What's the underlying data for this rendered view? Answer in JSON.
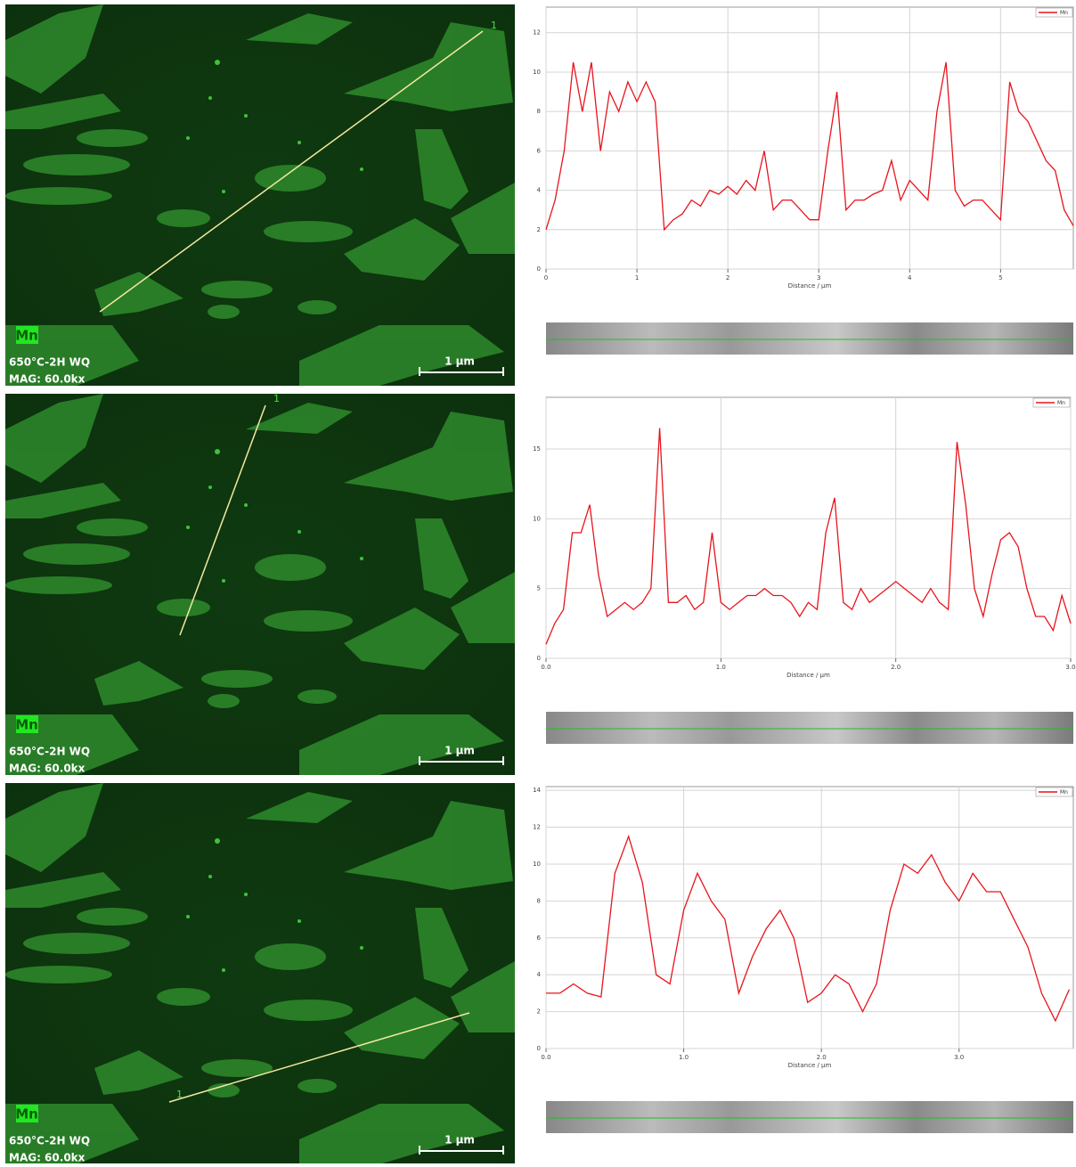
{
  "micrographs": [
    {
      "element": "Mn",
      "sample": "650°C-2H WQ",
      "mag": "MAG: 60.0kx",
      "scale": "1 µm",
      "marker": "1"
    },
    {
      "element": "Mn",
      "sample": "650°C-2H WQ",
      "mag": "MAG: 60.0kx",
      "scale": "1 µm",
      "marker": "1"
    },
    {
      "element": "Mn",
      "sample": "650°C-2H WQ",
      "mag": "MAG: 60.0kx",
      "scale": "1 µm",
      "marker": "1"
    }
  ],
  "chart_data": [
    {
      "type": "line",
      "x_label": "Distance / µm",
      "grid": true,
      "legend": "upper right",
      "xlim": [
        0,
        5.8
      ],
      "xticks": [
        0,
        1,
        2,
        3,
        4,
        5
      ],
      "ylim": [
        0,
        13.3
      ],
      "yticks": [
        0,
        2,
        4,
        6,
        8,
        10,
        12
      ],
      "x": [
        0,
        0.1,
        0.2,
        0.3,
        0.4,
        0.5,
        0.6,
        0.7,
        0.8,
        0.9,
        1.0,
        1.1,
        1.2,
        1.3,
        1.4,
        1.5,
        1.6,
        1.7,
        1.8,
        1.9,
        2.0,
        2.1,
        2.2,
        2.3,
        2.4,
        2.5,
        2.6,
        2.7,
        2.8,
        2.9,
        3.0,
        3.1,
        3.2,
        3.3,
        3.4,
        3.5,
        3.6,
        3.7,
        3.8,
        3.9,
        4.0,
        4.1,
        4.2,
        4.3,
        4.4,
        4.5,
        4.6,
        4.7,
        4.8,
        4.9,
        5.0,
        5.1,
        5.2,
        5.3,
        5.4,
        5.5,
        5.6,
        5.7,
        5.8
      ],
      "series": [
        {
          "name": "Mn",
          "color": "#e8141c",
          "values": [
            2,
            3.5,
            6,
            10.5,
            8,
            10.5,
            6,
            9,
            8,
            9.5,
            8.5,
            9.5,
            8.5,
            2,
            2.5,
            2.8,
            3.5,
            3.2,
            4,
            3.8,
            4.2,
            3.8,
            4.5,
            4,
            6,
            3,
            3.5,
            3.5,
            3,
            2.5,
            2.5,
            6,
            9,
            3,
            3.5,
            3.5,
            3.8,
            4,
            5.5,
            3.5,
            4.5,
            4,
            3.5,
            8,
            10.5,
            4,
            3.2,
            3.5,
            3.5,
            3,
            2.5,
            9.5,
            8,
            7.5,
            6.5,
            5.5,
            5,
            3,
            2.2
          ]
        }
      ]
    },
    {
      "type": "line",
      "x_label": "Distance / µm",
      "grid": true,
      "legend": "upper right",
      "xlim": [
        0,
        3.0
      ],
      "xticks": [
        {
          "value": 0,
          "label": "0.0"
        },
        {
          "value": 1,
          "label": "1.0"
        },
        {
          "value": 2,
          "label": "2.0"
        },
        {
          "value": 3,
          "label": "3.0"
        }
      ],
      "ylim": [
        0,
        18.7
      ],
      "yticks": [
        0,
        5,
        10,
        15
      ],
      "x": [
        0,
        0.05,
        0.1,
        0.15,
        0.2,
        0.25,
        0.3,
        0.35,
        0.4,
        0.45,
        0.5,
        0.55,
        0.6,
        0.65,
        0.7,
        0.75,
        0.8,
        0.85,
        0.9,
        0.95,
        1.0,
        1.05,
        1.1,
        1.15,
        1.2,
        1.25,
        1.3,
        1.35,
        1.4,
        1.45,
        1.5,
        1.55,
        1.6,
        1.65,
        1.7,
        1.75,
        1.8,
        1.85,
        1.9,
        1.95,
        2.0,
        2.05,
        2.1,
        2.15,
        2.2,
        2.25,
        2.3,
        2.35,
        2.4,
        2.45,
        2.5,
        2.55,
        2.6,
        2.65,
        2.7,
        2.75,
        2.8,
        2.85,
        2.9,
        2.95,
        3.0
      ],
      "series": [
        {
          "name": "Mn",
          "color": "#e8141c",
          "values": [
            1,
            2.5,
            3.5,
            9,
            9,
            11,
            6,
            3,
            3.5,
            4,
            3.5,
            4,
            5,
            16.5,
            4,
            4,
            4.5,
            3.5,
            4,
            9,
            4,
            3.5,
            4,
            4.5,
            4.5,
            5,
            4.5,
            4.5,
            4,
            3,
            4,
            3.5,
            9,
            11.5,
            4,
            3.5,
            5,
            4,
            4.5,
            5,
            5.5,
            5,
            4.5,
            4,
            5,
            4,
            3.5,
            15.5,
            11,
            5,
            3,
            6,
            8.5,
            9,
            8,
            5,
            3,
            3,
            2,
            4.5,
            2.5
          ]
        }
      ]
    },
    {
      "type": "line",
      "x_label": "Distance / µm",
      "grid": true,
      "legend": "upper right",
      "xlim": [
        0,
        3.83
      ],
      "xticks": [
        {
          "value": 0,
          "label": "0.0"
        },
        {
          "value": 1,
          "label": "1.0"
        },
        {
          "value": 2,
          "label": "2.0"
        },
        {
          "value": 3,
          "label": "3.0"
        }
      ],
      "ylim": [
        0,
        14.2
      ],
      "yticks": [
        0,
        2,
        4,
        6,
        8,
        10,
        12,
        14
      ],
      "x": [
        0,
        0.1,
        0.2,
        0.3,
        0.4,
        0.5,
        0.6,
        0.7,
        0.8,
        0.9,
        1.0,
        1.1,
        1.2,
        1.3,
        1.4,
        1.5,
        1.6,
        1.7,
        1.8,
        1.9,
        2.0,
        2.1,
        2.2,
        2.3,
        2.4,
        2.5,
        2.6,
        2.7,
        2.8,
        2.9,
        3.0,
        3.1,
        3.2,
        3.3,
        3.4,
        3.5,
        3.6,
        3.7,
        3.8
      ],
      "series": [
        {
          "name": "Mn",
          "color": "#e8141c",
          "values": [
            3,
            3,
            3.5,
            3,
            2.8,
            9.5,
            11.5,
            9,
            4,
            3.5,
            7.5,
            9.5,
            8,
            7,
            3,
            5,
            6.5,
            7.5,
            6,
            2.5,
            3,
            4,
            3.5,
            2,
            3.5,
            7.5,
            10,
            9.5,
            10.5,
            9,
            8,
            9.5,
            8.5,
            8.5,
            7,
            5.5,
            3,
            1.5,
            3.2
          ]
        }
      ]
    }
  ]
}
